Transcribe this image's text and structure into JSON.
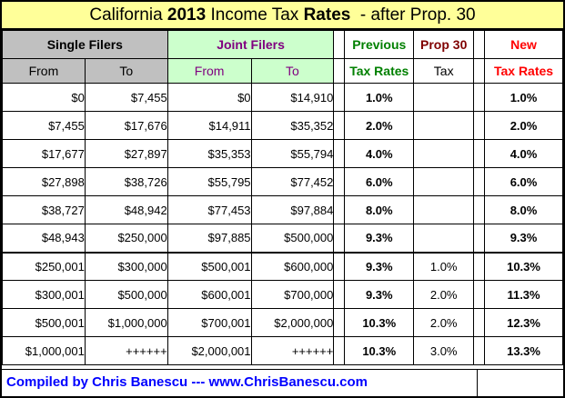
{
  "title": {
    "prefix": "California ",
    "year": "2013",
    "middle": " Income Tax ",
    "rates_word": "Rates",
    "suffix": "  - after Prop. 30"
  },
  "headers": {
    "single_filers": "Single Filers",
    "joint_filers": "Joint Filers",
    "previous_line1": "Previous",
    "previous_line2": "Tax Rates",
    "prop30_line1": "Prop 30",
    "prop30_line2": "Tax",
    "new_line1": "New",
    "new_line2": "Tax Rates",
    "from": "From",
    "to": "To"
  },
  "rows": [
    {
      "single_from": "$0",
      "single_to": "$7,455",
      "joint_from": "$0",
      "joint_to": "$14,910",
      "previous": "1.0%",
      "prop30": "",
      "new": "1.0%"
    },
    {
      "single_from": "$7,455",
      "single_to": "$17,676",
      "joint_from": "$14,911",
      "joint_to": "$35,352",
      "previous": "2.0%",
      "prop30": "",
      "new": "2.0%"
    },
    {
      "single_from": "$17,677",
      "single_to": "$27,897",
      "joint_from": "$35,353",
      "joint_to": "$55,794",
      "previous": "4.0%",
      "prop30": "",
      "new": "4.0%"
    },
    {
      "single_from": "$27,898",
      "single_to": "$38,726",
      "joint_from": "$55,795",
      "joint_to": "$77,452",
      "previous": "6.0%",
      "prop30": "",
      "new": "6.0%"
    },
    {
      "single_from": "$38,727",
      "single_to": "$48,942",
      "joint_from": "$77,453",
      "joint_to": "$97,884",
      "previous": "8.0%",
      "prop30": "",
      "new": "8.0%"
    },
    {
      "single_from": "$48,943",
      "single_to": "$250,000",
      "joint_from": "$97,885",
      "joint_to": "$500,000",
      "previous": "9.3%",
      "prop30": "",
      "new": "9.3%"
    },
    {
      "single_from": "$250,001",
      "single_to": "$300,000",
      "joint_from": "$500,001",
      "joint_to": "$600,000",
      "previous": "9.3%",
      "prop30": "1.0%",
      "new": "10.3%"
    },
    {
      "single_from": "$300,001",
      "single_to": "$500,000",
      "joint_from": "$600,001",
      "joint_to": "$700,000",
      "previous": "9.3%",
      "prop30": "2.0%",
      "new": "11.3%"
    },
    {
      "single_from": "$500,001",
      "single_to": "$1,000,000",
      "joint_from": "$700,001",
      "joint_to": "$2,000,000",
      "previous": "10.3%",
      "prop30": "2.0%",
      "new": "12.3%"
    },
    {
      "single_from": "$1,000,001",
      "single_to": "++++++",
      "joint_from": "$2,000,001",
      "joint_to": "++++++",
      "previous": "10.3%",
      "prop30": "3.0%",
      "new": "13.3%"
    }
  ],
  "footer": "Compiled by Chris Banescu --- www.ChrisBanescu.com",
  "colors": {
    "title_bg": "#ffff99",
    "single_header_bg": "#c0c0c0",
    "joint_header_bg": "#ccffcc",
    "previous_rate": "#008000",
    "prop30_rate": "#800000",
    "new_rate_increase": "#ff0000",
    "footer_text": "#0000ff"
  }
}
